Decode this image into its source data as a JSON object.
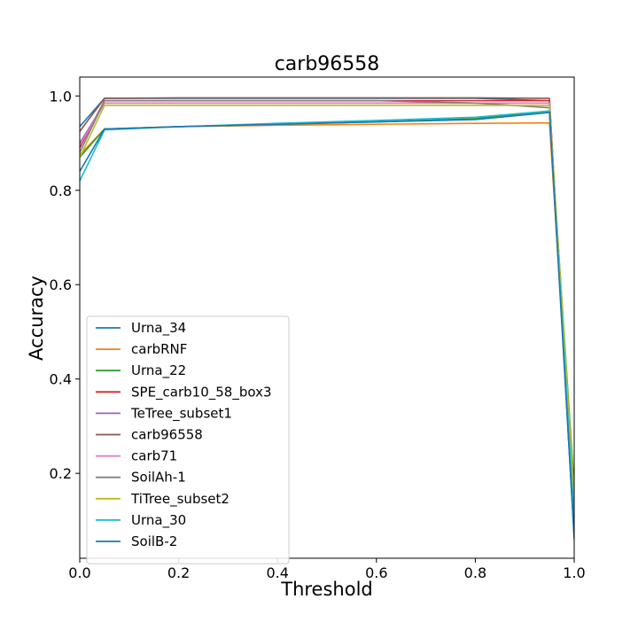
{
  "chart_data": {
    "type": "line",
    "title": "carb96558",
    "xlabel": "Threshold",
    "ylabel": "Accuracy",
    "xlim": [
      0.0,
      1.0
    ],
    "ylim": [
      0.02,
      1.04
    ],
    "xticks": [
      0.0,
      0.2,
      0.4,
      0.6,
      0.8,
      1.0
    ],
    "xtick_labels": [
      "0.0",
      "0.2",
      "0.4",
      "0.6",
      "0.8",
      "1.0"
    ],
    "yticks": [
      0.2,
      0.4,
      0.6,
      0.8,
      1.0
    ],
    "ytick_labels": [
      "0.2",
      "0.4",
      "0.6",
      "0.8",
      "1.0"
    ],
    "grid": false,
    "legend_position": "lower-left",
    "x": [
      0.0,
      0.05,
      0.2,
      0.4,
      0.6,
      0.8,
      0.95,
      1.0
    ],
    "series": [
      {
        "name": "Urna_34",
        "color": "#1f77b4",
        "values": [
          0.935,
          0.995,
          0.995,
          0.995,
          0.995,
          0.995,
          0.99,
          0.06
        ]
      },
      {
        "name": "carbRNF",
        "color": "#ff7f0e",
        "values": [
          0.875,
          0.93,
          0.935,
          0.938,
          0.94,
          0.942,
          0.943,
          0.11
        ]
      },
      {
        "name": "Urna_22",
        "color": "#2ca02c",
        "values": [
          0.87,
          0.93,
          0.935,
          0.94,
          0.945,
          0.952,
          0.968,
          0.17
        ]
      },
      {
        "name": "SPE_carb10_58_box3",
        "color": "#d62728",
        "values": [
          0.89,
          0.99,
          0.99,
          0.99,
          0.99,
          0.99,
          0.99,
          0.08
        ]
      },
      {
        "name": "TeTree_subset1",
        "color": "#9467bd",
        "values": [
          0.9,
          0.985,
          0.985,
          0.985,
          0.985,
          0.985,
          0.985,
          0.08
        ]
      },
      {
        "name": "carb96558",
        "color": "#8c564b",
        "values": [
          0.925,
          0.995,
          0.996,
          0.996,
          0.996,
          0.996,
          0.995,
          0.07
        ]
      },
      {
        "name": "carb71",
        "color": "#e377c2",
        "values": [
          0.895,
          0.985,
          0.985,
          0.985,
          0.985,
          0.985,
          0.985,
          0.1
        ]
      },
      {
        "name": "SoilAh-1",
        "color": "#7f7f7f",
        "values": [
          0.88,
          0.99,
          0.99,
          0.99,
          0.99,
          0.985,
          0.975,
          0.09
        ]
      },
      {
        "name": "TiTree_subset2",
        "color": "#bcbd22",
        "values": [
          0.87,
          0.98,
          0.98,
          0.98,
          0.98,
          0.98,
          0.98,
          0.15
        ]
      },
      {
        "name": "Urna_30",
        "color": "#17becf",
        "values": [
          0.82,
          0.928,
          0.935,
          0.942,
          0.948,
          0.955,
          0.968,
          0.1
        ]
      },
      {
        "name": "SoilB-2",
        "color": "#1f77b4",
        "values": [
          0.84,
          0.93,
          0.935,
          0.94,
          0.945,
          0.95,
          0.965,
          0.065
        ]
      }
    ]
  }
}
